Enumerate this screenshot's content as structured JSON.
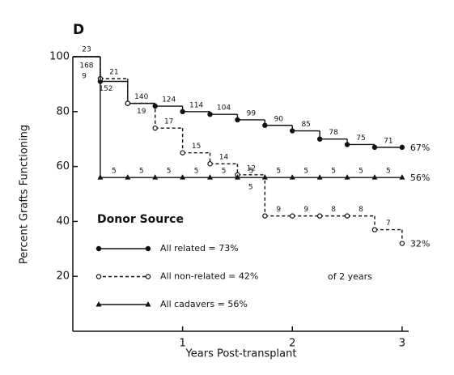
{
  "chart_data": {
    "type": "step",
    "panel": "D",
    "y_label": "Percent Grafts Functioning",
    "x_label": "Years Post-transplant",
    "xlim": [
      0,
      3.06
    ],
    "ylim": [
      0,
      100
    ],
    "xticks": [
      1,
      2,
      3
    ],
    "yticks": [
      20,
      40,
      60,
      80,
      100
    ],
    "x": [
      0,
      0.25,
      0.5,
      0.75,
      1,
      1.25,
      1.5,
      1.75,
      2,
      2.25,
      2.5,
      2.75,
      3
    ],
    "legend_title": "Donor Source",
    "legend_note": "of 2 years",
    "series": [
      {
        "name": "All related = 73%",
        "color": "#111111",
        "style": "solid",
        "marker": "dot",
        "values": [
          100,
          91,
          83,
          82,
          80,
          79,
          77,
          75,
          73,
          70,
          68,
          67,
          67
        ],
        "at_risk": [
          168,
          152,
          140,
          124,
          114,
          104,
          99,
          90,
          85,
          78,
          75,
          71
        ],
        "end_label": "67%"
      },
      {
        "name": "All non-related = 42%",
        "color": "#111111",
        "style": "dashed",
        "marker": "open",
        "values": [
          100,
          92,
          83,
          74,
          65,
          61,
          57,
          42,
          42,
          42,
          42,
          37,
          32
        ],
        "at_risk": [
          23,
          21,
          19,
          17,
          15,
          14,
          12,
          9,
          9,
          8,
          8,
          7
        ],
        "end_label": "32%"
      },
      {
        "name": "All cadavers = 56%",
        "color": "#111111",
        "style": "solid",
        "marker": "triangle",
        "values": [
          100,
          56,
          56,
          56,
          56,
          56,
          56,
          56,
          56,
          56,
          56,
          56,
          56
        ],
        "at_risk": [
          9,
          5,
          5,
          5,
          5,
          5,
          5,
          5,
          5,
          5,
          5,
          5
        ],
        "note": "5",
        "end_label": "56%"
      }
    ]
  }
}
